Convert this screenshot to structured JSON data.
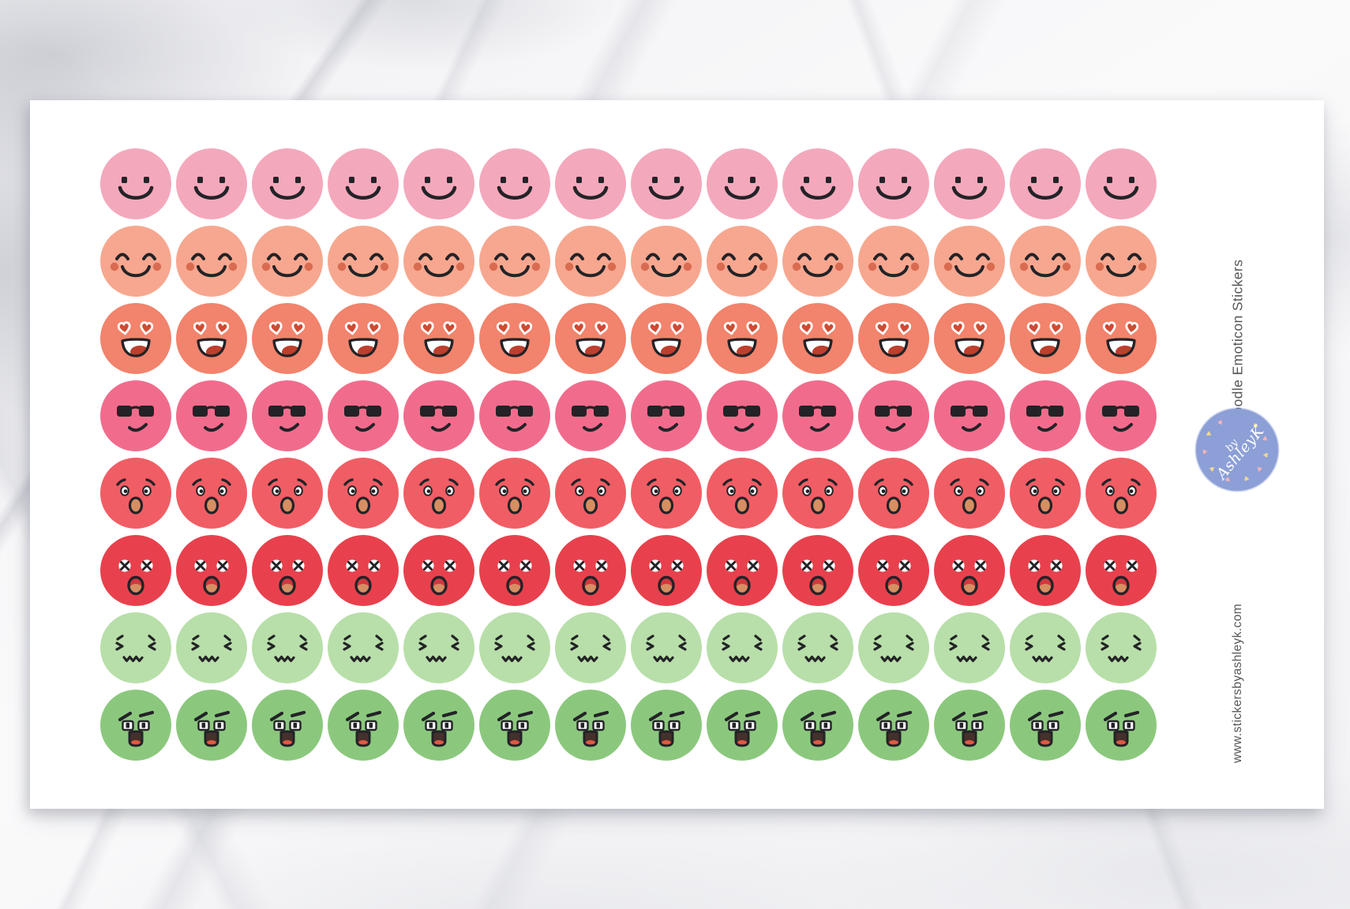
{
  "product": {
    "title": "Fun Doodle Emoticon Stickers",
    "website": "www.stickersbyashleyk.com",
    "brand_by": "by",
    "brand_name": "AshleyK"
  },
  "sheet": {
    "rows": 8,
    "columns": 14,
    "sticker_rows": [
      {
        "emotion": "smile",
        "color": "#F4A8BC"
      },
      {
        "emotion": "happy-blush",
        "color": "#F7A78F"
      },
      {
        "emotion": "heart-eyes",
        "color": "#F2836C"
      },
      {
        "emotion": "sunglasses",
        "color": "#F16C8C"
      },
      {
        "emotion": "worried",
        "color": "#F15D64"
      },
      {
        "emotion": "dead",
        "color": "#E8414D"
      },
      {
        "emotion": "squirm",
        "color": "#B8DFA9"
      },
      {
        "emotion": "angry",
        "color": "#8BC87D"
      }
    ]
  },
  "palette": {
    "ink": "#232327",
    "blush": "#D96B50",
    "heart": "#CE4B33",
    "tongue": "#D78E62",
    "tongue_dark": "#BD3F2D",
    "tongue_red": "#E2593F",
    "mouth_dark": "#46302C",
    "mouth_red": "#D23840",
    "text": "#57575A",
    "logo_bg": "#8C9FD6",
    "logo_heart_yellow": "#F2D992",
    "logo_heart_pink": "#F2B4BC"
  }
}
